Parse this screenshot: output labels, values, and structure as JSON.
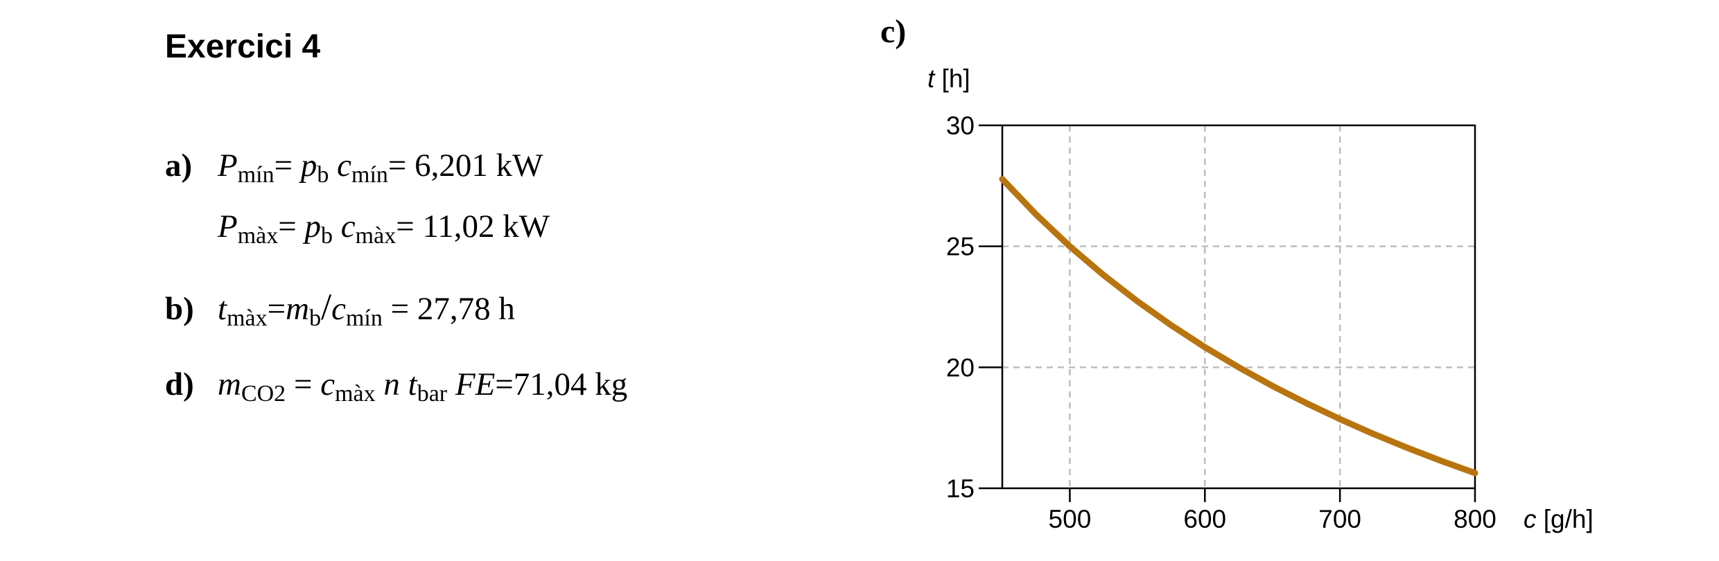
{
  "title": "Exercici 4",
  "part_c_label": "c)",
  "equations": {
    "a_label": "a)",
    "b_label": "b)",
    "d_label": "d)",
    "P_sym": "P",
    "p_sym": "p",
    "c_sym": "c",
    "t_sym": "t",
    "m_sym": "m",
    "n_sym": "n",
    "FE_sym": "FE",
    "sub_min": "mín",
    "sub_max": "màx",
    "sub_b": "b",
    "sub_co2": "CO2",
    "sub_bar": "bar",
    "eq_sign": "=",
    "slash": "/",
    "a_line1_result": "= 6,201 kW",
    "a_line2_result": "= 11,02 kW",
    "b_result": " = 27,78 h",
    "d_result": "=71,04 kg"
  },
  "chart_data": {
    "type": "line",
    "ylabel_symbol": "t",
    "ylabel_unit": "[h]",
    "xlabel_symbol": "c",
    "xlabel_unit": "[g/h]",
    "xlim": [
      450,
      800
    ],
    "ylim": [
      15,
      30
    ],
    "x_ticks": [
      500,
      600,
      700,
      800
    ],
    "y_ticks": [
      15,
      20,
      25,
      30
    ],
    "x_tick_labels": [
      "500",
      "600",
      "700",
      "800"
    ],
    "y_tick_labels": [
      "15",
      "20",
      "25",
      "30"
    ],
    "grid": true,
    "series": [
      {
        "color": "#b8740f",
        "x": [
          450,
          475,
          500,
          525,
          550,
          575,
          600,
          625,
          650,
          675,
          700,
          725,
          750,
          775,
          800
        ],
        "y": [
          27.78,
          26.32,
          25.0,
          23.81,
          22.73,
          21.74,
          20.83,
          20.0,
          19.23,
          18.52,
          17.86,
          17.24,
          16.67,
          16.13,
          15.63
        ]
      }
    ]
  }
}
